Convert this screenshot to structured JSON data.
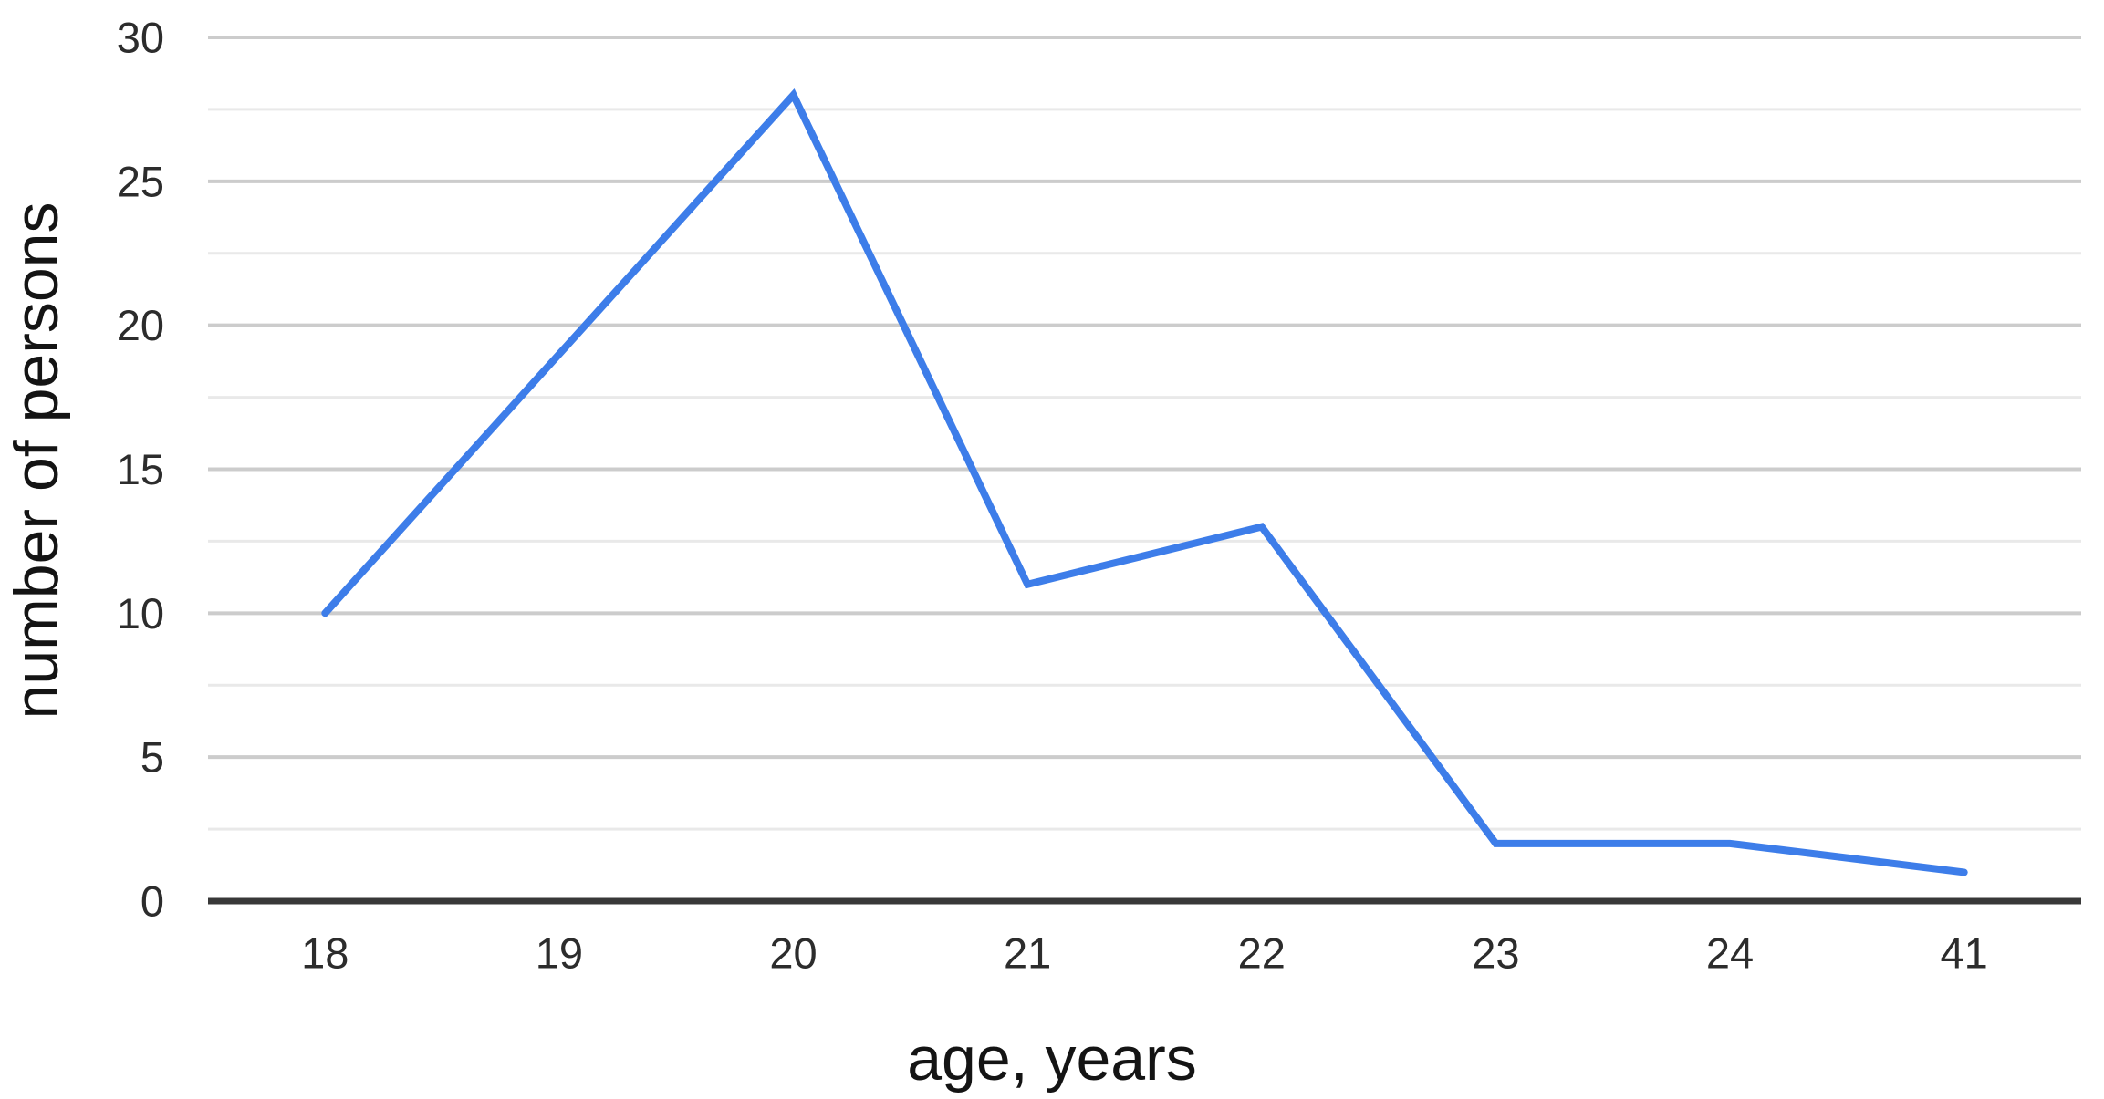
{
  "chart_data": {
    "type": "line",
    "title": "",
    "xlabel": "age, years",
    "ylabel": "number of persons",
    "categories": [
      "18",
      "19",
      "20",
      "21",
      "22",
      "23",
      "24",
      "41"
    ],
    "series": [
      {
        "name": "number of persons",
        "values": [
          10,
          19,
          28,
          11,
          13,
          2,
          2,
          1
        ]
      }
    ],
    "x": [
      18,
      19,
      20,
      21,
      22,
      23,
      24,
      41
    ],
    "ylim": [
      0,
      30
    ],
    "y_ticks": [
      0,
      5,
      10,
      15,
      20,
      25,
      30
    ],
    "y_tick_step": 5,
    "y_minor_step": 2.5,
    "grid": "horizontal, major + minor lines, no vertical gridlines",
    "legend": "none",
    "colors": {
      "series_line": "#3d7de9",
      "major_grid": "#cccccc",
      "minor_grid": "#e9e9e9",
      "axis_line": "#383838",
      "tick_text": "#2c2c2c",
      "title_text": "#141414",
      "background": "#ffffff"
    }
  }
}
